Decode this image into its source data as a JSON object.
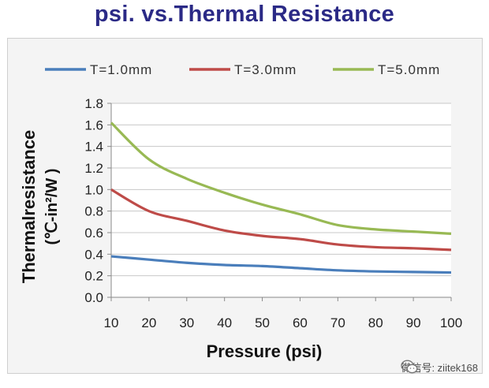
{
  "chart_data": {
    "type": "line",
    "title": "psi. vs.Thermal Resistance",
    "xlabel": "Pressure (psi)",
    "ylabel_line1": "Thermalresistance",
    "ylabel_line2": "(℃-in²/W )",
    "x": [
      10,
      20,
      30,
      40,
      50,
      60,
      70,
      80,
      90,
      100
    ],
    "xlim": [
      10,
      100
    ],
    "ylim": [
      0,
      1.8
    ],
    "yticks": [
      "0.0",
      "0.2",
      "0.4",
      "0.6",
      "0.8",
      "1.0",
      "1.2",
      "1.4",
      "1.6",
      "1.8"
    ],
    "xticks": [
      "10",
      "20",
      "30",
      "40",
      "50",
      "60",
      "70",
      "80",
      "90",
      "100"
    ],
    "grid": true,
    "legend_position": "top",
    "series": [
      {
        "name": "T=1.0mm",
        "color": "#4a7ebb",
        "values": [
          0.38,
          0.35,
          0.32,
          0.3,
          0.29,
          0.27,
          0.25,
          0.24,
          0.235,
          0.23
        ]
      },
      {
        "name": "T=3.0mm",
        "color": "#be4b48",
        "values": [
          1.0,
          0.8,
          0.71,
          0.62,
          0.57,
          0.54,
          0.49,
          0.465,
          0.455,
          0.44
        ]
      },
      {
        "name": "T=5.0mm",
        "color": "#98b954",
        "values": [
          1.62,
          1.28,
          1.1,
          0.97,
          0.86,
          0.77,
          0.67,
          0.63,
          0.61,
          0.59
        ]
      }
    ]
  },
  "watermark": {
    "text": "微信号: ziitek168",
    "icon": "wechat-icon"
  }
}
